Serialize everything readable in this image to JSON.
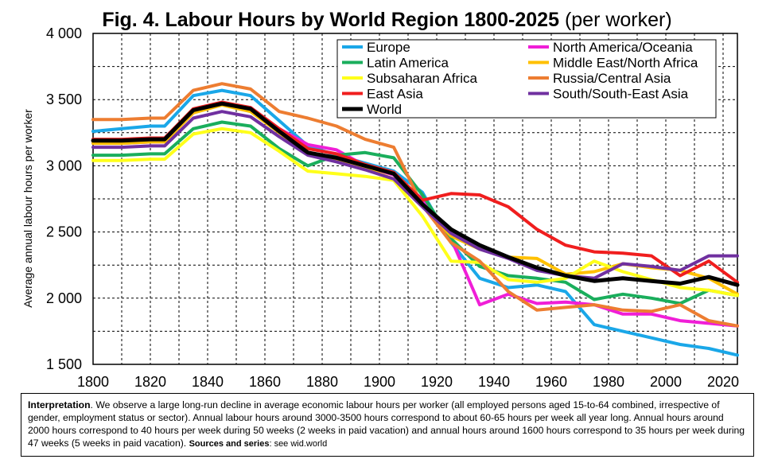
{
  "title": {
    "bold": "Fig. 4. Labour Hours by World Region 1800-2025",
    "normal": "(per worker)"
  },
  "chart_data": {
    "type": "line",
    "ylabel": "Average annual labour hours per worker",
    "xlabel": "",
    "xlim": [
      1800,
      2025
    ],
    "ylim": [
      1500,
      4000
    ],
    "x_ticks": [
      1800,
      1820,
      1840,
      1860,
      1880,
      1900,
      1920,
      1940,
      1960,
      1980,
      2000,
      2020
    ],
    "x_tick_labels": [
      "1800",
      "1820",
      "1840",
      "1860",
      "1880",
      "1900",
      "1920",
      "1940",
      "1960",
      "1980",
      "2000",
      "2020"
    ],
    "y_ticks": [
      1500,
      2000,
      2500,
      3000,
      3500,
      4000
    ],
    "y_tick_labels": [
      "1 500",
      "2 000",
      "2 500",
      "3 000",
      "3 500",
      "4 000"
    ],
    "grid": true,
    "legend_position": "top-right",
    "series": [
      {
        "name": "Europe",
        "color": "#1AA7E8",
        "x": [
          1800,
          1810,
          1820,
          1825,
          1835,
          1845,
          1855,
          1865,
          1875,
          1885,
          1895,
          1905,
          1915,
          1925,
          1935,
          1945,
          1955,
          1965,
          1975,
          1985,
          1995,
          2005,
          2015,
          2025
        ],
        "y": [
          3260,
          3280,
          3300,
          3300,
          3530,
          3570,
          3530,
          3340,
          3150,
          3080,
          3020,
          2960,
          2800,
          2420,
          2150,
          2080,
          2100,
          2050,
          1800,
          1750,
          1700,
          1650,
          1620,
          1570
        ]
      },
      {
        "name": "North America/Oceania",
        "color": "#F01ED7",
        "x": [
          1800,
          1810,
          1820,
          1825,
          1835,
          1845,
          1855,
          1865,
          1875,
          1885,
          1895,
          1905,
          1915,
          1925,
          1935,
          1945,
          1955,
          1965,
          1975,
          1985,
          1995,
          2005,
          2015,
          2025
        ],
        "y": [
          3170,
          3170,
          3180,
          3180,
          3400,
          3470,
          3440,
          3280,
          3160,
          3120,
          3000,
          2930,
          2750,
          2450,
          1950,
          2030,
          1960,
          1970,
          1950,
          1880,
          1880,
          1830,
          1810,
          1790
        ]
      },
      {
        "name": "Latin America",
        "color": "#1AAE5C",
        "x": [
          1800,
          1810,
          1820,
          1825,
          1835,
          1845,
          1855,
          1865,
          1875,
          1885,
          1895,
          1905,
          1915,
          1925,
          1935,
          1945,
          1955,
          1965,
          1975,
          1985,
          1995,
          2005,
          2015,
          2025
        ],
        "y": [
          3080,
          3080,
          3090,
          3090,
          3280,
          3330,
          3300,
          3130,
          3000,
          3080,
          3100,
          3060,
          2780,
          2450,
          2240,
          2170,
          2150,
          2120,
          1990,
          2030,
          2000,
          1960,
          2060,
          2020
        ]
      },
      {
        "name": "Middle East/North Africa",
        "color": "#FFC000",
        "x": [
          1800,
          1810,
          1820,
          1825,
          1835,
          1845,
          1855,
          1865,
          1875,
          1885,
          1895,
          1905,
          1915,
          1925,
          1935,
          1945,
          1955,
          1965,
          1975,
          1985,
          1995,
          2005,
          2015,
          2025
        ],
        "y": [
          3170,
          3170,
          3180,
          3180,
          3400,
          3460,
          3410,
          3250,
          3090,
          3040,
          2980,
          2900,
          2700,
          2470,
          2370,
          2310,
          2300,
          2180,
          2200,
          2260,
          2230,
          2210,
          2150,
          2030
        ]
      },
      {
        "name": "Subsaharan Africa",
        "color": "#FFFF1A",
        "x": [
          1800,
          1810,
          1820,
          1825,
          1835,
          1845,
          1855,
          1865,
          1875,
          1885,
          1895,
          1905,
          1915,
          1925,
          1935,
          1945,
          1955,
          1965,
          1975,
          1985,
          1995,
          2005,
          2015,
          2025
        ],
        "y": [
          3040,
          3040,
          3050,
          3050,
          3240,
          3280,
          3250,
          3110,
          2960,
          2940,
          2920,
          2890,
          2620,
          2280,
          2270,
          2140,
          2120,
          2150,
          2280,
          2200,
          2140,
          2080,
          2060,
          2020
        ]
      },
      {
        "name": "Russia/Central Asia",
        "color": "#ED7D31",
        "x": [
          1800,
          1810,
          1820,
          1825,
          1835,
          1845,
          1855,
          1865,
          1875,
          1885,
          1895,
          1905,
          1915,
          1925,
          1935,
          1945,
          1955,
          1965,
          1975,
          1985,
          1995,
          2005,
          2015,
          2025
        ],
        "y": [
          3350,
          3350,
          3360,
          3360,
          3570,
          3620,
          3580,
          3410,
          3360,
          3300,
          3200,
          3140,
          2700,
          2420,
          2280,
          2050,
          1910,
          1930,
          1950,
          1910,
          1900,
          1950,
          1830,
          1790
        ]
      },
      {
        "name": "East Asia",
        "color": "#F01E1E",
        "x": [
          1800,
          1810,
          1820,
          1825,
          1835,
          1845,
          1855,
          1865,
          1875,
          1885,
          1895,
          1905,
          1915,
          1925,
          1935,
          1945,
          1955,
          1965,
          1975,
          1985,
          1995,
          2005,
          2015,
          2025
        ],
        "y": [
          3200,
          3200,
          3210,
          3210,
          3430,
          3480,
          3440,
          3280,
          3130,
          3090,
          3010,
          2950,
          2740,
          2790,
          2780,
          2690,
          2520,
          2400,
          2350,
          2340,
          2320,
          2170,
          2280,
          2120
        ]
      },
      {
        "name": "South/South-East Asia",
        "color": "#7030A0",
        "x": [
          1800,
          1810,
          1820,
          1825,
          1835,
          1845,
          1855,
          1865,
          1875,
          1885,
          1895,
          1905,
          1915,
          1925,
          1935,
          1945,
          1955,
          1965,
          1975,
          1985,
          1995,
          2005,
          2015,
          2025
        ],
        "y": [
          3140,
          3140,
          3150,
          3150,
          3360,
          3410,
          3370,
          3220,
          3080,
          3030,
          2970,
          2900,
          2690,
          2490,
          2370,
          2300,
          2210,
          2170,
          2150,
          2260,
          2240,
          2210,
          2320,
          2320
        ]
      },
      {
        "name": "World",
        "color": "#000000",
        "x": [
          1800,
          1810,
          1820,
          1825,
          1835,
          1845,
          1855,
          1865,
          1875,
          1885,
          1895,
          1905,
          1915,
          1925,
          1935,
          1945,
          1955,
          1965,
          1975,
          1985,
          1995,
          2005,
          2015,
          2025
        ],
        "y": [
          3190,
          3190,
          3200,
          3200,
          3420,
          3470,
          3430,
          3260,
          3100,
          3060,
          3000,
          2940,
          2710,
          2520,
          2400,
          2310,
          2230,
          2170,
          2130,
          2150,
          2130,
          2110,
          2160,
          2100
        ]
      }
    ]
  },
  "note": {
    "label": "Interpretation",
    "text": ". We observe a large long-run decline in average economic labour hours per worker (all employed persons aged 15-to-64 combined, irrespective of gender, employment status or sector). Annual labour hours around 3000-3500 hours correspond to about 60-65 hours per week all year long. Annual hours around 2000 hours correspond to 40 hours per week during 50 weeks (2 weeks in paid vacation) and annual hours around 1600 hours correspond to 35 hours per week during 47 weeks (5 weeks in paid vacation).",
    "sources_label": "Sources and series",
    "sources_text": ": see wid.world"
  }
}
